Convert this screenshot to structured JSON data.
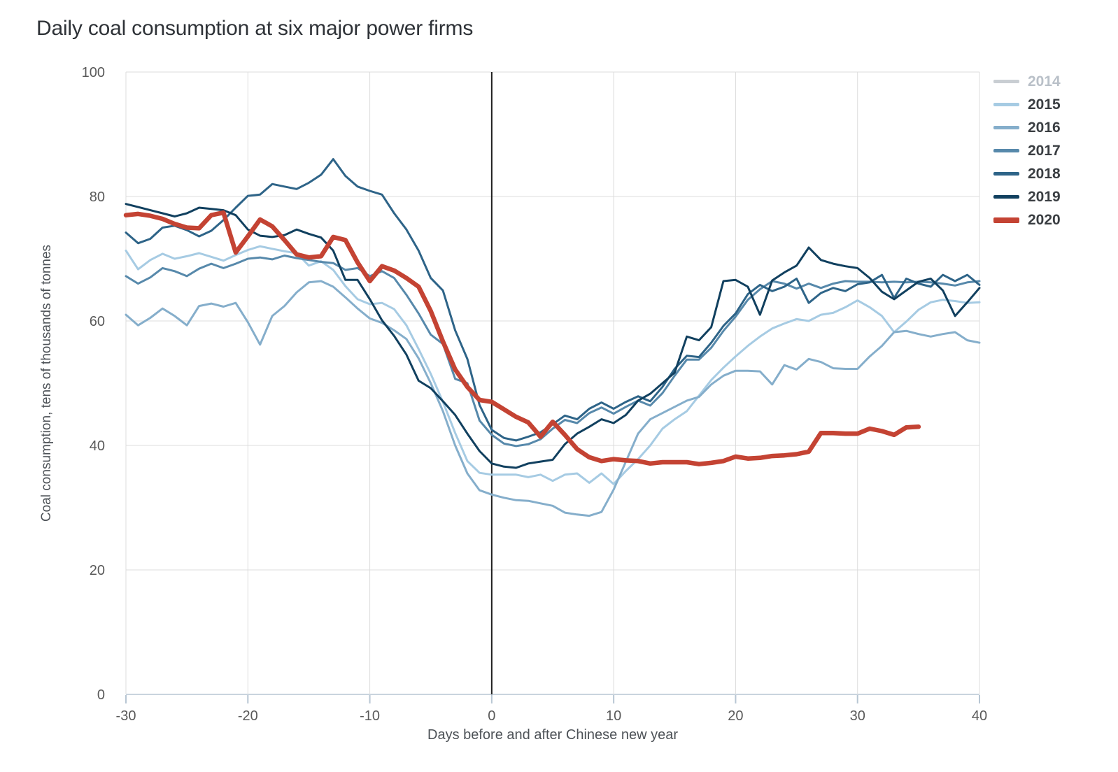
{
  "title": "Daily coal consumption at six major power firms",
  "axes": {
    "y_label": "Coal consumption, tens of thousands of tonnes",
    "x_label": "Days before and after Chinese new year",
    "y_ticks": [
      0,
      20,
      40,
      60,
      80,
      100
    ],
    "x_ticks": [
      -30,
      -20,
      -10,
      0,
      10,
      20,
      30,
      40
    ]
  },
  "legend": [
    {
      "label": "2014",
      "color": "#c9ced3",
      "muted": true,
      "thick": false
    },
    {
      "label": "2015",
      "color": "#a6cbe3",
      "muted": false,
      "thick": false
    },
    {
      "label": "2016",
      "color": "#85aecb",
      "muted": false,
      "thick": false
    },
    {
      "label": "2017",
      "color": "#5789ab",
      "muted": false,
      "thick": false
    },
    {
      "label": "2018",
      "color": "#2e6488",
      "muted": false,
      "thick": false
    },
    {
      "label": "2019",
      "color": "#11405f",
      "muted": false,
      "thick": false
    },
    {
      "label": "2020",
      "color": "#c44333",
      "muted": false,
      "thick": true
    }
  ],
  "chart_data": {
    "type": "line",
    "title": "Daily coal consumption at six major power firms",
    "xlabel": "Days before and after Chinese new year",
    "ylabel": "Coal consumption, tens of thousands of tonnes",
    "xlim": [
      -30,
      40
    ],
    "ylim": [
      0,
      100
    ],
    "grid": true,
    "legend_position": "top-right",
    "zero_day_line": 0,
    "x_start": -30,
    "x_step": 1,
    "colors": {
      "grid": "#dcdcdc",
      "baseline": "#b7c6d3",
      "zero_line": "#1f1f1f",
      "tick_text": "#595959"
    },
    "series": [
      {
        "name": "2014",
        "color": "#c9ced3",
        "width": 3,
        "values": []
      },
      {
        "name": "2015",
        "color": "#a6cbe3",
        "width": 3,
        "values": [
          71.3,
          68.3,
          69.8,
          70.8,
          70.0,
          70.4,
          70.9,
          70.3,
          69.7,
          70.6,
          71.4,
          72.0,
          71.6,
          71.2,
          70.9,
          68.9,
          69.6,
          68.2,
          65.6,
          63.5,
          62.7,
          62.9,
          61.9,
          59.3,
          55.5,
          51.5,
          47.0,
          42.0,
          37.5,
          35.6,
          35.3,
          35.3,
          35.3,
          34.9,
          35.3,
          34.3,
          35.3,
          35.5,
          34.0,
          35.5,
          33.8,
          35.9,
          37.8,
          40.0,
          42.7,
          44.2,
          45.5,
          48.0,
          50.5,
          52.5,
          54.3,
          56.0,
          57.5,
          58.8,
          59.6,
          60.3,
          60.0,
          61.0,
          61.3,
          62.2,
          63.3,
          62.2,
          60.8,
          58.2,
          59.9,
          61.8,
          63.0,
          63.4,
          63.2,
          62.9,
          63.0
        ]
      },
      {
        "name": "2016",
        "color": "#85aecb",
        "width": 3,
        "values": [
          61.0,
          59.3,
          60.5,
          62.0,
          60.8,
          59.3,
          62.4,
          62.8,
          62.3,
          62.9,
          59.8,
          56.2,
          60.8,
          62.4,
          64.6,
          66.2,
          66.4,
          65.5,
          63.8,
          62.0,
          60.4,
          59.7,
          58.5,
          57.1,
          54.0,
          50.0,
          45.5,
          40.0,
          35.5,
          32.8,
          32.1,
          31.6,
          31.2,
          31.1,
          30.7,
          30.3,
          29.2,
          28.9,
          28.7,
          29.3,
          32.9,
          37.4,
          41.9,
          44.2,
          45.2,
          46.2,
          47.2,
          47.8,
          49.8,
          51.2,
          52.0,
          52.0,
          51.9,
          49.8,
          52.9,
          52.2,
          53.9,
          53.4,
          52.4,
          52.3,
          52.3,
          54.3,
          56.0,
          58.2,
          58.4,
          57.9,
          57.5,
          57.9,
          58.2,
          56.9,
          56.5
        ]
      },
      {
        "name": "2017",
        "color": "#5789ab",
        "width": 3,
        "values": [
          67.2,
          66.0,
          67.0,
          68.5,
          68.0,
          67.2,
          68.4,
          69.2,
          68.5,
          69.2,
          70.0,
          70.2,
          69.9,
          70.5,
          70.1,
          69.8,
          69.5,
          69.3,
          68.2,
          68.5,
          67.2,
          68.0,
          66.9,
          64.2,
          61.2,
          57.8,
          56.3,
          50.7,
          50.0,
          44.0,
          41.7,
          40.3,
          39.9,
          40.2,
          41.0,
          42.7,
          44.1,
          43.6,
          45.2,
          46.1,
          45.1,
          46.2,
          47.2,
          46.4,
          48.4,
          51.2,
          53.8,
          53.8,
          55.7,
          58.4,
          60.7,
          63.4,
          65.1,
          66.4,
          66.0,
          65.2,
          66.0,
          65.3,
          66.0,
          66.4,
          66.3,
          66.3,
          66.2,
          66.3,
          66.2,
          66.3,
          66.2,
          66.0,
          65.7,
          66.2,
          66.4
        ]
      },
      {
        "name": "2018",
        "color": "#2e6488",
        "width": 3,
        "values": [
          74.2,
          72.5,
          73.2,
          75.0,
          75.3,
          74.6,
          73.6,
          74.5,
          76.2,
          78.2,
          80.1,
          80.3,
          82.0,
          81.6,
          81.2,
          82.2,
          83.5,
          86.0,
          83.3,
          81.6,
          80.9,
          80.3,
          77.3,
          74.7,
          71.3,
          66.9,
          64.9,
          58.5,
          53.9,
          46.5,
          42.5,
          41.2,
          40.8,
          41.4,
          42.1,
          43.4,
          44.8,
          44.2,
          45.9,
          46.9,
          45.9,
          47.0,
          47.9,
          47.1,
          49.4,
          52.3,
          54.4,
          54.2,
          56.5,
          59.2,
          61.2,
          64.3,
          65.8,
          64.8,
          65.5,
          66.8,
          62.9,
          64.5,
          65.3,
          64.8,
          65.9,
          66.2,
          67.4,
          63.7,
          66.8,
          66.0,
          65.5,
          67.4,
          66.4,
          67.4,
          65.8
        ]
      },
      {
        "name": "2019",
        "color": "#11405f",
        "width": 3,
        "values": [
          78.8,
          78.3,
          77.8,
          77.3,
          76.8,
          77.3,
          78.2,
          78.0,
          77.8,
          77.0,
          74.7,
          73.7,
          73.5,
          73.8,
          74.7,
          74.0,
          73.4,
          71.3,
          66.6,
          66.6,
          63.5,
          60.1,
          57.6,
          54.6,
          50.4,
          49.2,
          47.1,
          44.9,
          41.9,
          39.1,
          37.1,
          36.6,
          36.4,
          37.1,
          37.4,
          37.7,
          40.2,
          41.9,
          43.0,
          44.2,
          43.6,
          44.9,
          47.2,
          48.3,
          50.0,
          51.7,
          57.5,
          56.9,
          59.0,
          66.4,
          66.6,
          65.5,
          61.0,
          66.5,
          67.8,
          68.9,
          71.8,
          69.8,
          69.2,
          68.8,
          68.5,
          66.9,
          64.7,
          63.5,
          64.9,
          66.3,
          66.8,
          64.9,
          60.8,
          63.0,
          65.3
        ]
      },
      {
        "name": "2020",
        "color": "#c44333",
        "width": 6.5,
        "values": [
          77.0,
          77.2,
          76.9,
          76.4,
          75.6,
          75.0,
          74.9,
          77.0,
          77.4,
          71.0,
          73.6,
          76.3,
          75.2,
          73.0,
          70.7,
          70.2,
          70.4,
          73.5,
          73.0,
          69.4,
          66.4,
          68.8,
          68.1,
          66.9,
          65.5,
          61.6,
          56.7,
          52.2,
          49.4,
          47.3,
          47.0,
          45.8,
          44.6,
          43.7,
          41.4,
          43.8,
          41.7,
          39.4,
          38.1,
          37.5,
          37.8,
          37.6,
          37.5,
          37.1,
          37.3,
          37.3,
          37.3,
          37.0,
          37.2,
          37.5,
          38.2,
          37.9,
          38.0,
          38.3,
          38.4,
          38.6,
          39.0,
          42.0,
          42.0,
          41.9,
          41.9,
          42.7,
          42.3,
          41.7,
          42.9,
          43.0
        ]
      }
    ]
  }
}
